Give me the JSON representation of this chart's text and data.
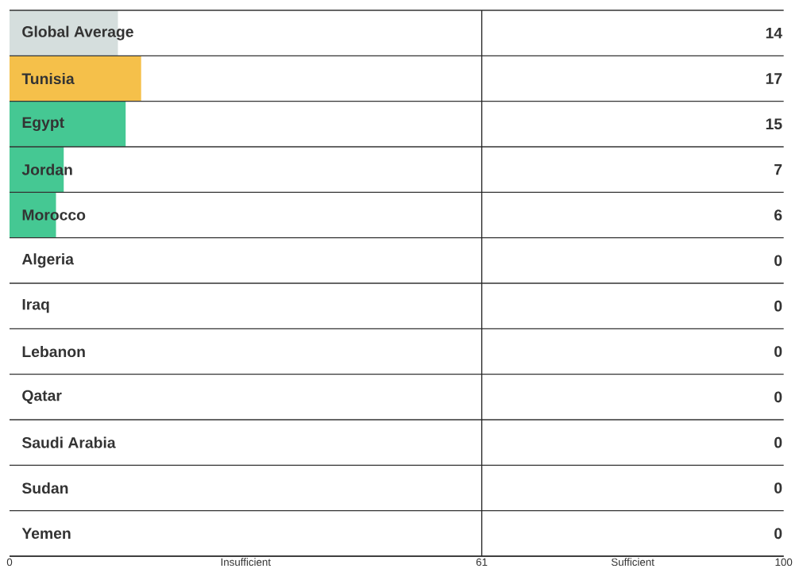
{
  "chart_data": {
    "type": "bar",
    "orientation": "horizontal",
    "categories": [
      "Global Average",
      "Tunisia",
      "Egypt",
      "Jordan",
      "Morocco",
      "Algeria",
      "Iraq",
      "Lebanon",
      "Qatar",
      "Saudi Arabia",
      "Sudan",
      "Yemen"
    ],
    "values": [
      14,
      17,
      15,
      7,
      6,
      0,
      0,
      0,
      0,
      0,
      0,
      0
    ],
    "colors": [
      "#d5dedd",
      "#f5c04a",
      "#45c893",
      "#45c893",
      "#45c893",
      "#45c893",
      "#45c893",
      "#45c893",
      "#45c893",
      "#45c893",
      "#45c893",
      "#45c893"
    ],
    "xlim": [
      0,
      100
    ],
    "xticks": [
      0,
      61,
      100
    ],
    "data_labels": true,
    "ref_lines": [
      {
        "axis": "x",
        "value": 61,
        "color": "#222222"
      }
    ],
    "annotations": [
      "Insufficient",
      "Sufficient"
    ]
  }
}
